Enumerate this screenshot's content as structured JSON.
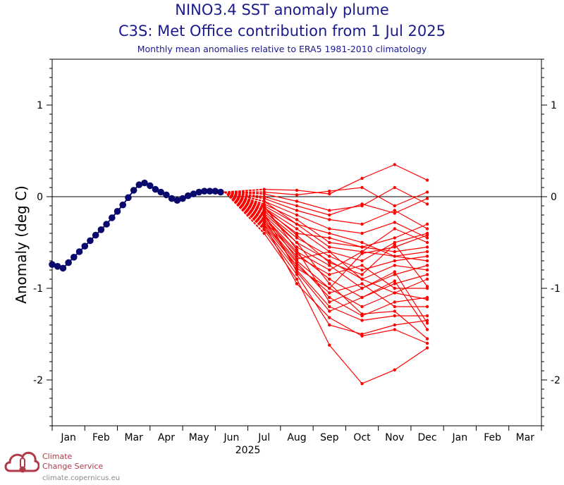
{
  "chart_data": {
    "type": "line",
    "title": "NINO3.4 SST anomaly plume",
    "subtitle": "C3S: Met Office contribution from 1 Jul 2025",
    "caption": "Monthly mean anomalies relative to ERA5 1981-2010 climatology",
    "ylabel": "Anomaly (deg C)",
    "ylim": [
      -2.5,
      1.5
    ],
    "yticks": [
      -2,
      -1,
      0,
      1
    ],
    "month_labels": [
      "Jan",
      "Feb",
      "Mar",
      "Apr",
      "May",
      "Jun",
      "Jul",
      "Aug",
      "Sep",
      "Oct",
      "Nov",
      "Dec",
      "Jan",
      "Feb",
      "Mar"
    ],
    "year_label": "2025",
    "reference_line": 0,
    "observed": {
      "color": "#0a0a6e",
      "x_month": [
        0.0,
        0.166,
        0.333,
        0.5,
        0.666,
        0.833,
        1.0,
        1.166,
        1.333,
        1.5,
        1.666,
        1.833,
        2.0,
        2.166,
        2.333,
        2.5,
        2.666,
        2.833,
        3.0,
        3.166,
        3.333,
        3.5,
        3.666,
        3.833,
        4.0,
        4.166,
        4.333,
        4.5,
        4.666,
        4.833,
        5.0,
        5.166
      ],
      "y": [
        -0.74,
        -0.76,
        -0.78,
        -0.72,
        -0.66,
        -0.6,
        -0.54,
        -0.48,
        -0.42,
        -0.36,
        -0.3,
        -0.23,
        -0.16,
        -0.09,
        -0.01,
        0.07,
        0.13,
        0.15,
        0.12,
        0.08,
        0.05,
        0.02,
        -0.02,
        -0.04,
        -0.02,
        0.01,
        0.03,
        0.05,
        0.06,
        0.06,
        0.06,
        0.05
      ]
    },
    "forecast": {
      "color": "#ff0000",
      "x_month": [
        6.5,
        7.5,
        8.5,
        9.5,
        10.5,
        11.5
      ],
      "members": [
        [
          0.08,
          0.07,
          0.03,
          0.2,
          0.35,
          0.18
        ],
        [
          0.05,
          0.02,
          0.06,
          0.1,
          -0.1,
          0.05
        ],
        [
          0.03,
          -0.05,
          -0.15,
          -0.1,
          0.1,
          -0.08
        ],
        [
          0.0,
          -0.1,
          -0.2,
          -0.08,
          -0.18,
          -0.02
        ],
        [
          -0.02,
          -0.15,
          -0.25,
          -0.3,
          -0.15,
          -0.35
        ],
        [
          -0.05,
          -0.2,
          -0.35,
          -0.4,
          -0.28,
          -0.45
        ],
        [
          -0.08,
          -0.25,
          -0.5,
          -0.55,
          -0.45,
          -0.3
        ],
        [
          -0.1,
          -0.3,
          -0.55,
          -0.6,
          -0.35,
          -0.5
        ],
        [
          -0.12,
          -0.35,
          -0.6,
          -0.7,
          -0.5,
          -0.4
        ],
        [
          -0.14,
          -0.4,
          -0.45,
          -0.55,
          -0.6,
          -0.55
        ],
        [
          -0.16,
          -0.45,
          -0.65,
          -0.8,
          -0.7,
          -0.65
        ],
        [
          -0.18,
          -0.5,
          -0.7,
          -0.9,
          -0.75,
          -0.8
        ],
        [
          -0.2,
          -0.55,
          -0.75,
          -1.0,
          -0.85,
          -0.75
        ],
        [
          -0.22,
          -0.6,
          -0.8,
          -0.6,
          -0.65,
          -0.7
        ],
        [
          -0.24,
          -0.62,
          -0.9,
          -1.1,
          -0.95,
          -0.85
        ],
        [
          -0.26,
          -0.65,
          -0.85,
          -0.75,
          -1.0,
          -1.0
        ],
        [
          -0.28,
          -0.7,
          -1.0,
          -1.2,
          -1.05,
          -0.9
        ],
        [
          -0.3,
          -0.72,
          -1.1,
          -1.3,
          -1.15,
          -1.1
        ],
        [
          -0.32,
          -0.75,
          -1.05,
          -0.95,
          -1.2,
          -1.2
        ],
        [
          -0.34,
          -0.8,
          -1.2,
          -1.35,
          -1.3,
          -1.3
        ],
        [
          -0.36,
          -0.85,
          -1.4,
          -1.5,
          -1.4,
          -1.35
        ],
        [
          -0.4,
          -0.9,
          -1.62,
          -2.04,
          -1.89,
          -1.65
        ],
        [
          -0.15,
          -0.5,
          -0.95,
          -1.28,
          -1.25,
          -1.55
        ],
        [
          -0.2,
          -0.68,
          -0.6,
          -0.9,
          -1.05,
          -1.12
        ],
        [
          -0.25,
          -0.78,
          -1.0,
          -0.62,
          -0.55,
          -0.42
        ],
        [
          -0.3,
          -0.95,
          -1.32,
          -1.52,
          -1.45,
          -1.6
        ],
        [
          -0.12,
          -0.42,
          -0.72,
          -0.85,
          -0.52,
          -0.98
        ],
        [
          -0.1,
          -0.58,
          -1.15,
          -1.0,
          -0.82,
          -1.38
        ],
        [
          -0.05,
          -0.3,
          -0.4,
          -0.5,
          -0.65,
          -0.6
        ],
        [
          -0.18,
          -0.82,
          -1.25,
          -1.1,
          -0.92,
          -1.45
        ]
      ]
    }
  },
  "logo": {
    "line1": "Climate",
    "line2": "Change Service",
    "url": "climate.copernicus.eu",
    "color": "#b03a48"
  }
}
